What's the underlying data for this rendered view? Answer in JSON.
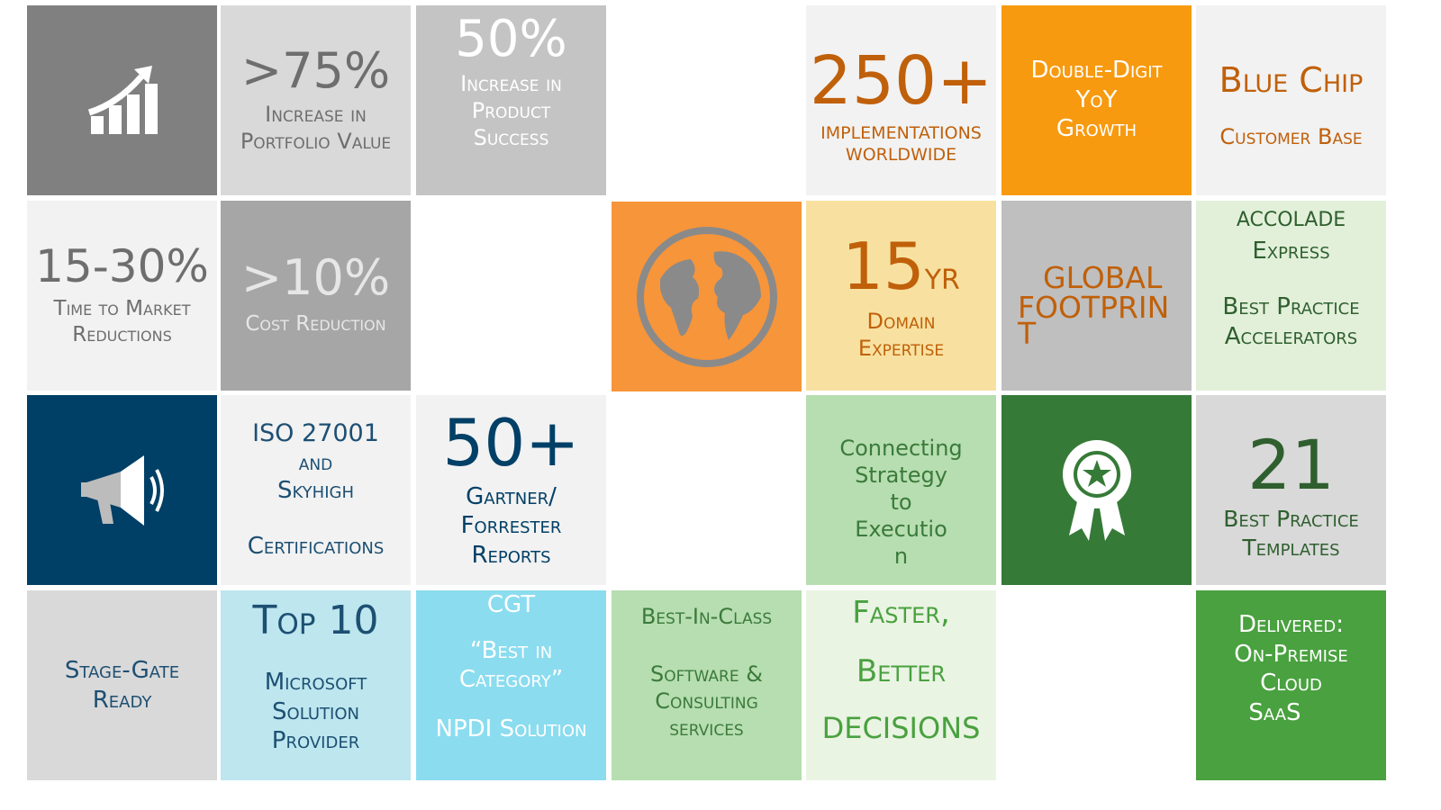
{
  "colors": {
    "dark_gray": "#808080",
    "light_gray": "#d9d9d9",
    "mid_gray": "#a6a6a6",
    "silver": "#c4c4c4",
    "off_white": "#f2f2f2",
    "orange": "#f79a10",
    "orange_soft": "#f7953a",
    "cream": "#f8e1a0",
    "gray_bb": "#bfbfbf",
    "mint": "#e2f0d9",
    "navy": "#003f66",
    "green_light": "#b6deb0",
    "green_dark": "#367a37",
    "green_med": "#49a13f",
    "sky": "#bde6ee",
    "cyan": "#8bdcef",
    "pale_green": "#eaf4e3",
    "brown_orange": "#c0600a",
    "navy_text": "#1d4f73",
    "green_text": "#3b8a3c"
  },
  "tiles": {
    "t75": {
      "value": ">75%",
      "line1": "Increase in",
      "line2": "Portfolio Value"
    },
    "t50": {
      "value": "50%",
      "line1": "Increase in",
      "line2": "Product",
      "line3": "Success"
    },
    "t250": {
      "value": "250+",
      "line1": "IMPLEMENTATIONS",
      "line2": "WORLDWIDE"
    },
    "tdd": {
      "line1": "Double-Digit",
      "line2": "YoY",
      "line3": "Growth"
    },
    "tbc": {
      "line1": "Blue Chip",
      "line2": "Customer Base"
    },
    "t1530": {
      "value": "15-30%",
      "line1": "Time to Market",
      "line2": "Reductions"
    },
    "t10": {
      "value": ">10%",
      "line1": "Cost Reduction"
    },
    "t15": {
      "value": "15",
      "unit": "YR",
      "line1": "Domain",
      "line2": "Expertise"
    },
    "tgf": {
      "line1": "GLOBAL",
      "line2": "FOOTPRIN",
      "line3": "T"
    },
    "tacc": {
      "line1": "ACCOLADE",
      "line2": "Express",
      "line3": "Best Practice",
      "line4": "Accelerators"
    },
    "tiso": {
      "line1": "ISO 27001",
      "line2": "and",
      "line3": "Skyhigh",
      "line4": "Certifications"
    },
    "tg50": {
      "value": "50+",
      "line1": "Gartner/",
      "line2": "Forrester",
      "line3": "Reports"
    },
    "tcon": {
      "line1": "Connecting",
      "line2": "Strategy",
      "line3": "to",
      "line4": "Executio",
      "line5": "n"
    },
    "t21": {
      "value": "21",
      "line1": "Best Practice",
      "line2": "Templates"
    },
    "tsg": {
      "line1": "Stage-Gate",
      "line2": "Ready"
    },
    "ttop": {
      "value": "Top 10",
      "line1": "Microsoft",
      "line2": "Solution",
      "line3": "Provider"
    },
    "tcgt": {
      "line1": "CGT",
      "line2": "“Best in",
      "line3": "Category”",
      "line4": "NPDI Solution"
    },
    "tbic": {
      "line1": "Best-In-Class",
      "line2": "Software &",
      "line3": "Consulting",
      "line4": "services"
    },
    "tfbd": {
      "line1": "Faster,",
      "line2": "Better",
      "line3": "DECISIONS"
    },
    "tdel": {
      "line1": "Delivered:",
      "line2": "On-Premise",
      "line3": "Cloud",
      "line4": "SaaS"
    }
  },
  "icons": {
    "growth": "growth-chart-icon",
    "globe": "globe-icon",
    "megaphone": "megaphone-icon",
    "award": "award-ribbon-icon"
  }
}
